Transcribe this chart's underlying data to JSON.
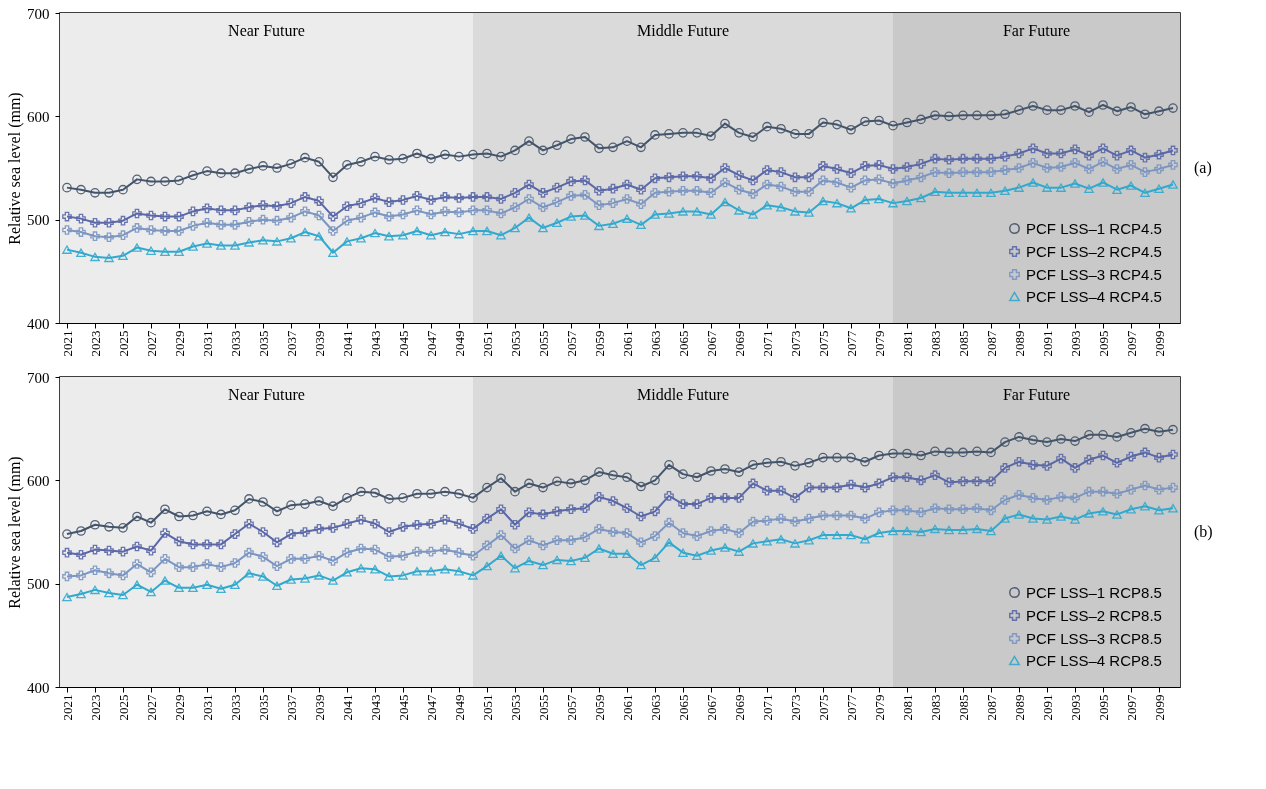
{
  "chart_data": [
    {
      "type": "line",
      "ylabel": "Relative sea level (mm)",
      "annotations": [
        "(a)"
      ],
      "legend": "bottom right",
      "grid": false,
      "xlim": [
        2020.5,
        2100.5
      ],
      "ylim": [
        400,
        700
      ],
      "yticks": [
        400,
        500,
        600,
        700
      ],
      "xticks": [
        2021,
        2023,
        2025,
        2027,
        2029,
        2031,
        2033,
        2035,
        2037,
        2039,
        2041,
        2043,
        2045,
        2047,
        2049,
        2051,
        2053,
        2055,
        2057,
        2059,
        2061,
        2063,
        2065,
        2067,
        2069,
        2071,
        2073,
        2075,
        2077,
        2079,
        2081,
        2083,
        2085,
        2087,
        2089,
        2091,
        2093,
        2095,
        2097,
        2099
      ],
      "x": [
        2021,
        2022,
        2023,
        2024,
        2025,
        2026,
        2027,
        2028,
        2029,
        2030,
        2031,
        2032,
        2033,
        2034,
        2035,
        2036,
        2037,
        2038,
        2039,
        2040,
        2041,
        2042,
        2043,
        2044,
        2045,
        2046,
        2047,
        2048,
        2049,
        2050,
        2051,
        2052,
        2053,
        2054,
        2055,
        2056,
        2057,
        2058,
        2059,
        2060,
        2061,
        2062,
        2063,
        2064,
        2065,
        2066,
        2067,
        2068,
        2069,
        2070,
        2071,
        2072,
        2073,
        2074,
        2075,
        2076,
        2077,
        2078,
        2079,
        2080,
        2081,
        2082,
        2083,
        2084,
        2085,
        2086,
        2087,
        2088,
        2089,
        2090,
        2091,
        2092,
        2093,
        2094,
        2095,
        2096,
        2097,
        2098,
        2099,
        2100
      ],
      "bands": [
        {
          "axis": "x",
          "from": 2020.5,
          "to": 2050,
          "label": "Near Future",
          "color": "#ececec"
        },
        {
          "axis": "x",
          "from": 2050,
          "to": 2080,
          "label": "Middle Future",
          "color": "#dadada"
        },
        {
          "axis": "x",
          "from": 2080,
          "to": 2100.5,
          "label": "Far Future",
          "color": "#c9c9c9"
        }
      ],
      "series": [
        {
          "name": "PCF LSS–1 RCP4.5",
          "color": "#44546a",
          "marker": "circle",
          "values": [
            531,
            529,
            526,
            526,
            529,
            539,
            537,
            537,
            538,
            543,
            547,
            545,
            545,
            549,
            552,
            550,
            554,
            560,
            556,
            541,
            553,
            556,
            561,
            558,
            559,
            564,
            559,
            563,
            561,
            563,
            564,
            561,
            567,
            576,
            567,
            572,
            578,
            580,
            569,
            570,
            576,
            570,
            582,
            583,
            584,
            584,
            581,
            593,
            584,
            580,
            590,
            588,
            583,
            583,
            594,
            592,
            587,
            595,
            596,
            591,
            594,
            597,
            601,
            600,
            601,
            601,
            601,
            602,
            606,
            610,
            606,
            606,
            610,
            604,
            611,
            605,
            609,
            602,
            605,
            608
          ]
        },
        {
          "name": "PCF LSS–2 RCP4.5",
          "color": "#5a68a8",
          "marker": "cross",
          "values": [
            503,
            501,
            497,
            497,
            499,
            506,
            504,
            503,
            503,
            508,
            511,
            509,
            509,
            512,
            514,
            513,
            516,
            522,
            518,
            503,
            513,
            516,
            521,
            517,
            519,
            523,
            519,
            522,
            521,
            522,
            522,
            520,
            526,
            534,
            526,
            531,
            537,
            538,
            528,
            530,
            534,
            529,
            540,
            541,
            542,
            542,
            540,
            550,
            543,
            538,
            548,
            546,
            541,
            541,
            552,
            549,
            545,
            552,
            553,
            549,
            551,
            554,
            559,
            558,
            559,
            559,
            559,
            561,
            564,
            569,
            564,
            564,
            568,
            562,
            569,
            562,
            567,
            560,
            563,
            567
          ]
        },
        {
          "name": "PCF LSS–3 RCP4.5",
          "color": "#7b96c2",
          "marker": "cross",
          "values": [
            490,
            488,
            484,
            483,
            485,
            492,
            490,
            489,
            489,
            494,
            497,
            495,
            495,
            498,
            500,
            499,
            502,
            508,
            504,
            489,
            499,
            502,
            507,
            503,
            505,
            509,
            505,
            508,
            507,
            509,
            509,
            506,
            512,
            520,
            512,
            517,
            523,
            524,
            514,
            516,
            520,
            515,
            526,
            527,
            528,
            528,
            526,
            536,
            529,
            525,
            534,
            532,
            527,
            527,
            538,
            536,
            531,
            538,
            539,
            535,
            538,
            541,
            546,
            545,
            546,
            546,
            546,
            548,
            550,
            555,
            550,
            551,
            555,
            549,
            556,
            549,
            553,
            546,
            549,
            553
          ]
        },
        {
          "name": "PCF LSS–4 RCP4.5",
          "color": "#31a9cf",
          "marker": "triangle",
          "values": [
            471,
            468,
            464,
            463,
            465,
            473,
            470,
            469,
            469,
            474,
            477,
            475,
            475,
            478,
            480,
            479,
            482,
            488,
            484,
            468,
            479,
            482,
            487,
            484,
            485,
            489,
            485,
            488,
            486,
            489,
            489,
            485,
            492,
            502,
            492,
            497,
            503,
            504,
            494,
            496,
            501,
            495,
            505,
            506,
            508,
            508,
            505,
            517,
            509,
            505,
            514,
            512,
            508,
            507,
            518,
            516,
            511,
            519,
            520,
            516,
            518,
            521,
            527,
            526,
            526,
            526,
            526,
            528,
            531,
            536,
            531,
            531,
            535,
            530,
            536,
            529,
            533,
            526,
            530,
            534
          ]
        }
      ]
    },
    {
      "type": "line",
      "ylabel": "Relative sea level (mm)",
      "annotations": [
        "(b)"
      ],
      "legend": "bottom right",
      "grid": false,
      "xlim": [
        2020.5,
        2100.5
      ],
      "ylim": [
        400,
        700
      ],
      "yticks": [
        400,
        500,
        600,
        700
      ],
      "xticks": [
        2021,
        2023,
        2025,
        2027,
        2029,
        2031,
        2033,
        2035,
        2037,
        2039,
        2041,
        2043,
        2045,
        2047,
        2049,
        2051,
        2053,
        2055,
        2057,
        2059,
        2061,
        2063,
        2065,
        2067,
        2069,
        2071,
        2073,
        2075,
        2077,
        2079,
        2081,
        2083,
        2085,
        2087,
        2089,
        2091,
        2093,
        2095,
        2097,
        2099
      ],
      "x": [
        2021,
        2022,
        2023,
        2024,
        2025,
        2026,
        2027,
        2028,
        2029,
        2030,
        2031,
        2032,
        2033,
        2034,
        2035,
        2036,
        2037,
        2038,
        2039,
        2040,
        2041,
        2042,
        2043,
        2044,
        2045,
        2046,
        2047,
        2048,
        2049,
        2050,
        2051,
        2052,
        2053,
        2054,
        2055,
        2056,
        2057,
        2058,
        2059,
        2060,
        2061,
        2062,
        2063,
        2064,
        2065,
        2066,
        2067,
        2068,
        2069,
        2070,
        2071,
        2072,
        2073,
        2074,
        2075,
        2076,
        2077,
        2078,
        2079,
        2080,
        2081,
        2082,
        2083,
        2084,
        2085,
        2086,
        2087,
        2088,
        2089,
        2090,
        2091,
        2092,
        2093,
        2094,
        2095,
        2096,
        2097,
        2098,
        2099,
        2100
      ],
      "bands": [
        {
          "axis": "x",
          "from": 2020.5,
          "to": 2050,
          "label": "Near Future",
          "color": "#ececec"
        },
        {
          "axis": "x",
          "from": 2050,
          "to": 2080,
          "label": "Middle Future",
          "color": "#dadada"
        },
        {
          "axis": "x",
          "from": 2080,
          "to": 2100.5,
          "label": "Far Future",
          "color": "#c9c9c9"
        }
      ],
      "series": [
        {
          "name": "PCF LSS–1 RCP8.5",
          "color": "#44546a",
          "marker": "circle",
          "values": [
            548,
            551,
            557,
            555,
            554,
            565,
            559,
            572,
            565,
            566,
            570,
            567,
            571,
            582,
            579,
            570,
            576,
            577,
            580,
            575,
            583,
            589,
            588,
            582,
            583,
            587,
            587,
            589,
            587,
            583,
            593,
            602,
            589,
            597,
            593,
            599,
            597,
            600,
            608,
            605,
            603,
            594,
            600,
            615,
            606,
            603,
            609,
            611,
            608,
            615,
            617,
            618,
            614,
            617,
            622,
            622,
            622,
            618,
            624,
            626,
            626,
            624,
            628,
            627,
            627,
            628,
            627,
            637,
            642,
            639,
            637,
            640,
            638,
            644,
            644,
            642,
            646,
            650,
            647,
            649
          ]
        },
        {
          "name": "PCF LSS–2 RCP8.5",
          "color": "#5a68a8",
          "marker": "cross",
          "values": [
            530,
            528,
            533,
            532,
            531,
            536,
            532,
            549,
            541,
            538,
            538,
            538,
            548,
            558,
            550,
            540,
            548,
            550,
            553,
            554,
            558,
            562,
            558,
            550,
            555,
            557,
            558,
            562,
            558,
            553,
            563,
            572,
            557,
            569,
            567,
            570,
            572,
            573,
            584,
            580,
            573,
            565,
            570,
            585,
            577,
            577,
            583,
            583,
            583,
            597,
            590,
            590,
            583,
            593,
            593,
            593,
            596,
            593,
            597,
            603,
            603,
            600,
            605,
            598,
            599,
            599,
            599,
            612,
            618,
            615,
            614,
            621,
            612,
            620,
            624,
            617,
            623,
            627,
            622,
            625
          ]
        },
        {
          "name": "PCF LSS–3 RCP8.5",
          "color": "#7b96c2",
          "marker": "cross",
          "values": [
            507,
            508,
            513,
            510,
            508,
            519,
            511,
            524,
            516,
            516,
            519,
            516,
            520,
            530,
            526,
            517,
            524,
            524,
            527,
            522,
            530,
            534,
            533,
            526,
            527,
            531,
            531,
            533,
            530,
            527,
            537,
            547,
            534,
            542,
            537,
            542,
            542,
            545,
            553,
            550,
            549,
            540,
            546,
            559,
            549,
            546,
            551,
            553,
            549,
            560,
            561,
            563,
            560,
            563,
            566,
            566,
            566,
            563,
            569,
            571,
            571,
            569,
            573,
            572,
            572,
            573,
            571,
            581,
            586,
            583,
            581,
            584,
            583,
            589,
            589,
            587,
            591,
            595,
            591,
            593
          ]
        },
        {
          "name": "PCF LSS–4 RCP8.5",
          "color": "#31a9cf",
          "marker": "triangle",
          "values": [
            487,
            490,
            494,
            491,
            489,
            499,
            492,
            503,
            496,
            496,
            499,
            495,
            499,
            510,
            507,
            498,
            504,
            505,
            508,
            503,
            511,
            515,
            514,
            507,
            508,
            512,
            512,
            514,
            512,
            508,
            517,
            527,
            515,
            522,
            518,
            523,
            522,
            525,
            534,
            529,
            529,
            518,
            525,
            540,
            530,
            527,
            532,
            535,
            531,
            539,
            541,
            543,
            539,
            542,
            547,
            547,
            547,
            543,
            549,
            551,
            551,
            550,
            553,
            552,
            552,
            553,
            551,
            563,
            567,
            563,
            562,
            565,
            562,
            568,
            570,
            567,
            572,
            575,
            571,
            573
          ]
        }
      ]
    }
  ]
}
